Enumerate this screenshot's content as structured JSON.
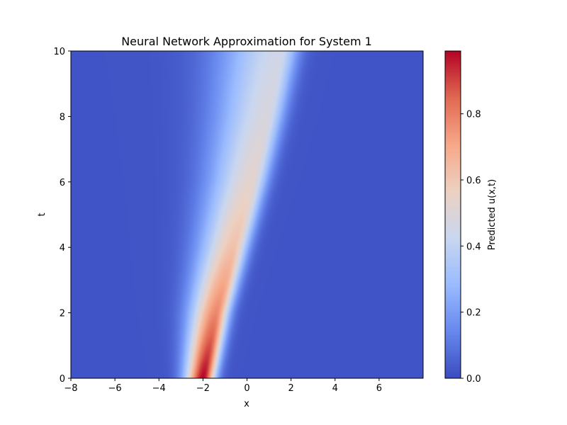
{
  "chart_data": {
    "type": "heatmap",
    "title": "Neural Network Approximation for System 1",
    "xlabel": "x",
    "ylabel": "t",
    "xlim": [
      -8,
      8
    ],
    "ylim": [
      0,
      10
    ],
    "xticks": [
      -8,
      -6,
      -4,
      -2,
      0,
      2,
      4,
      6
    ],
    "yticks": [
      0,
      2,
      4,
      6,
      8,
      10
    ],
    "colorbar": {
      "label": "Predicted u(x,t)",
      "range": [
        0.0,
        0.99
      ],
      "ticks": [
        0.0,
        0.2,
        0.4,
        0.6,
        0.8
      ],
      "colormap": "coolwarm",
      "colormap_stops": [
        "#3b4cc0",
        "#6788ee",
        "#9abbff",
        "#c9d7f0",
        "#edd1c2",
        "#f7a889",
        "#e26952",
        "#b40426"
      ]
    },
    "field_description": {
      "peak_value": 0.99,
      "peak_location": {
        "x": -2.0,
        "t": 0.0
      },
      "ridge_center": [
        {
          "t": 0,
          "x": -2.0
        },
        {
          "t": 2,
          "x": -1.4
        },
        {
          "t": 4,
          "x": -0.6
        },
        {
          "t": 6,
          "x": 0.2
        },
        {
          "t": 8,
          "x": 0.9
        },
        {
          "t": 10,
          "x": 1.5
        }
      ],
      "ridge_peak_value": [
        {
          "t": 0,
          "value": 0.99
        },
        {
          "t": 2,
          "value": 0.78
        },
        {
          "t": 4,
          "value": 0.62
        },
        {
          "t": 6,
          "value": 0.53
        },
        {
          "t": 8,
          "value": 0.48
        },
        {
          "t": 10,
          "value": 0.45
        }
      ]
    }
  }
}
